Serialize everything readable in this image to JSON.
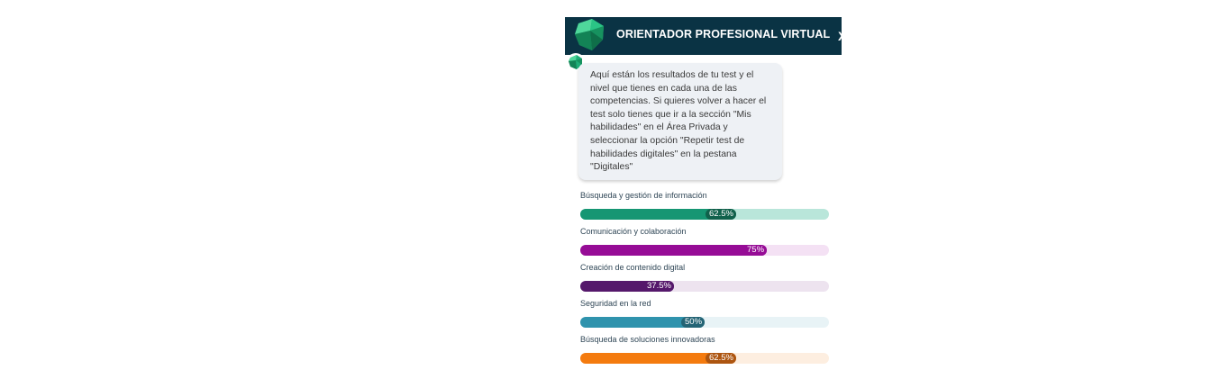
{
  "header": {
    "title": "ORIENTADOR PROFESIONAL VIRTUAL",
    "close_label": "X",
    "logo_icon": "green-gem-logo-icon"
  },
  "chat": {
    "avatar_icon": "bot-gem-avatar-icon",
    "message": "Aquí están los resultados de tu test y el nivel que tienes en cada una de las competencias. Si quieres volver a hacer el test solo tienes que ir a la sección \"Mis habilidades\" en el Área Privada y seleccionar la opción \"Repetir test de habilidades digitales\" en la pestana \"Digitales\""
  },
  "skills": [
    {
      "label": "Búsqueda y gestión de información",
      "percent_label": "62.5%",
      "value": 62.5,
      "fill_color": "#169673",
      "track_color": "#b9e6da",
      "badge_color": "#10614b"
    },
    {
      "label": "Comunicación y colaboración",
      "percent_label": "75%",
      "value": 75,
      "fill_color": "#960c96",
      "track_color": "#f4e1f4",
      "badge_color": "#960c96"
    },
    {
      "label": "Creación de contenido digital",
      "percent_label": "37.5%",
      "value": 37.5,
      "fill_color": "#55186b",
      "track_color": "#ede3ef",
      "badge_color": "#55186b"
    },
    {
      "label": "Seguridad en la red",
      "percent_label": "50%",
      "value": 50,
      "fill_color": "#2f93ad",
      "track_color": "#e8f3f6",
      "badge_color": "#246475"
    },
    {
      "label": "Búsqueda de soluciones innovadoras",
      "percent_label": "62.5%",
      "value": 62.5,
      "fill_color": "#f47b0f",
      "track_color": "#fdeee0",
      "badge_color": "#ad5510"
    }
  ]
}
